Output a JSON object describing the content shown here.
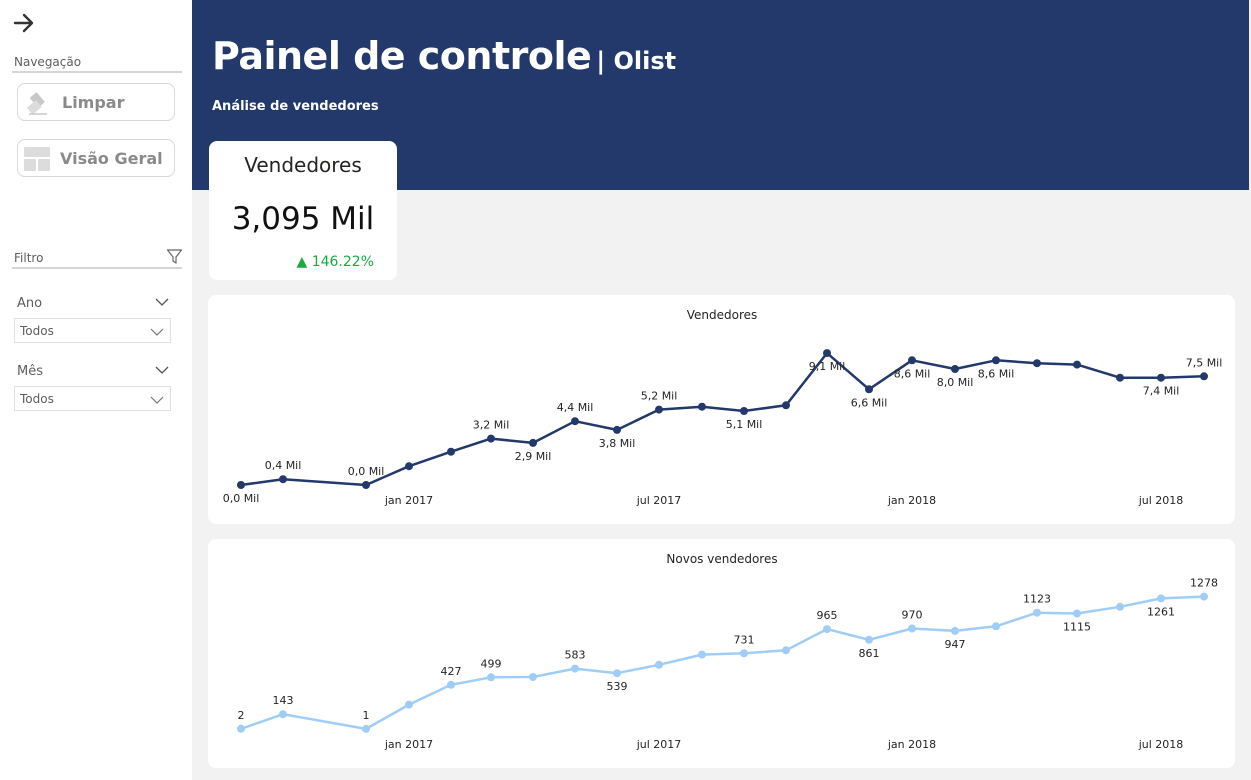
{
  "sidebar": {
    "nav_label": "Navegação",
    "buttons": [
      {
        "label": "Limpar",
        "icon": "eraser-icon"
      },
      {
        "label": "Visão Geral",
        "icon": "layout-grid-icon"
      }
    ],
    "filter_label": "Filtro",
    "filters": [
      {
        "label": "Ano",
        "value": "Todos"
      },
      {
        "label": "Mês",
        "value": "Todos"
      }
    ]
  },
  "header": {
    "title": "Painel de controle",
    "title_suffix": "| Olist",
    "subtitle": "Análise de vendedores"
  },
  "kpi": {
    "title": "Vendedores",
    "value": "3,095 Mil",
    "delta": "146.22%",
    "delta_icon": "triangle-up-icon",
    "delta_color": "#1aab40"
  },
  "colors": {
    "header": "#23386b",
    "series_dark": "#23386b",
    "series_light": "#9fcdf7",
    "background": "#f2f2f2"
  },
  "chart_data": [
    {
      "type": "line",
      "title": "Vendedores",
      "x": [
        "2016-09",
        "2016-10",
        "2016-11",
        "2016-12",
        "2017-01",
        "2017-02",
        "2017-03",
        "2017-04",
        "2017-05",
        "2017-06",
        "2017-07",
        "2017-08",
        "2017-09",
        "2017-10",
        "2017-11",
        "2017-12",
        "2018-01",
        "2018-02",
        "2018-03",
        "2018-04",
        "2018-05",
        "2018-06",
        "2018-07",
        "2018-08"
      ],
      "x_ticks": [
        "jan 2017",
        "jul 2017",
        "jan 2018",
        "jul 2018"
      ],
      "values": [
        0.0,
        0.4,
        null,
        0.0,
        1.3,
        2.3,
        3.2,
        2.9,
        4.4,
        3.8,
        5.2,
        5.4,
        5.1,
        5.5,
        9.1,
        6.6,
        8.6,
        8.0,
        8.6,
        8.4,
        8.3,
        7.4,
        7.4,
        7.5
      ],
      "data_labels": [
        "0,0 Mil",
        "0,4 Mil",
        null,
        "0,0 Mil",
        null,
        null,
        "3,2 Mil",
        "2,9 Mil",
        "4,4 Mil",
        "3,8 Mil",
        "5,2 Mil",
        null,
        "5,1 Mil",
        null,
        "9,1 Mil",
        "6,6 Mil",
        "8,6 Mil",
        "8,0 Mil",
        "8,6 Mil",
        null,
        null,
        null,
        "7,4 Mil",
        "7,5 Mil"
      ],
      "color": "#23386b",
      "ylim": [
        0,
        10
      ]
    },
    {
      "type": "line",
      "title": "Novos vendedores",
      "x": [
        "2016-09",
        "2016-10",
        "2016-11",
        "2016-12",
        "2017-01",
        "2017-02",
        "2017-03",
        "2017-04",
        "2017-05",
        "2017-06",
        "2017-07",
        "2017-08",
        "2017-09",
        "2017-10",
        "2017-11",
        "2017-12",
        "2018-01",
        "2018-02",
        "2018-03",
        "2018-04",
        "2018-05",
        "2018-06",
        "2018-07",
        "2018-08"
      ],
      "x_ticks": [
        "jan 2017",
        "jul 2017",
        "jan 2018",
        "jul 2018"
      ],
      "values": [
        2,
        143,
        null,
        1,
        236,
        427,
        499,
        502,
        583,
        539,
        620,
        718,
        731,
        760,
        965,
        861,
        970,
        947,
        992,
        1123,
        1115,
        1180,
        1261,
        1278
      ],
      "data_labels": [
        "2",
        "143",
        null,
        "1",
        null,
        "427",
        "499",
        null,
        "583",
        "539",
        null,
        null,
        "731",
        null,
        "965",
        "861",
        "970",
        "947",
        null,
        "1123",
        "1115",
        null,
        "1261",
        "1278"
      ],
      "color": "#9fcdf7",
      "ylim": [
        0,
        1400
      ]
    }
  ]
}
